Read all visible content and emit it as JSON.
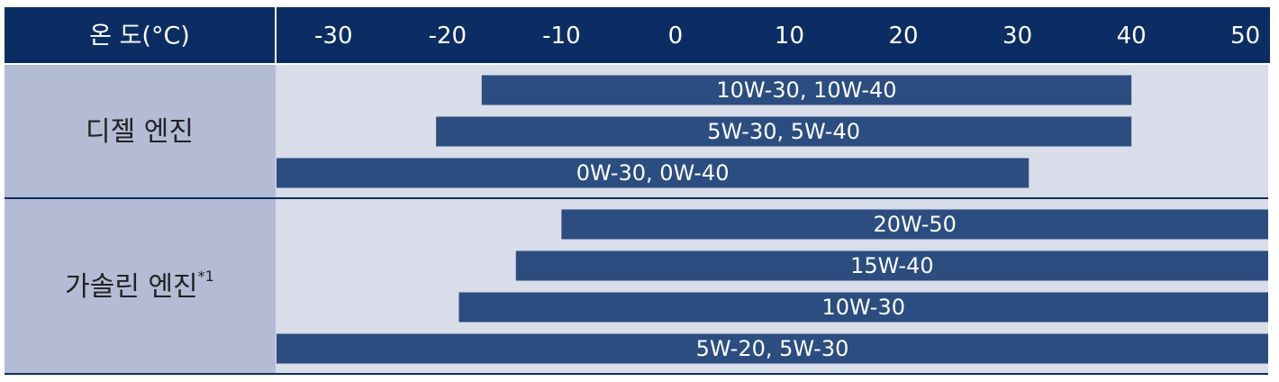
{
  "chart_data": {
    "type": "range",
    "axis_label": "온 도(°C)",
    "xlim": [
      -35,
      52
    ],
    "xticks": [
      -30,
      -20,
      -10,
      0,
      10,
      20,
      30,
      40,
      50
    ],
    "color": "#2b4d80",
    "groups": [
      {
        "name": "디젤 엔진",
        "bars": [
          {
            "label": "10W-30, 10W-40",
            "start": -17,
            "end": 40
          },
          {
            "label": "5W-30, 5W-40",
            "start": -21,
            "end": 40
          },
          {
            "label": "0W-30, 0W-40",
            "start": -35,
            "end": 31
          }
        ]
      },
      {
        "name": "가솔린 엔진",
        "note_mark": "*1",
        "bars": [
          {
            "label": "20W-50",
            "start": -10,
            "end": 52
          },
          {
            "label": "15W-40",
            "start": -14,
            "end": 52
          },
          {
            "label": "10W-30",
            "start": -19,
            "end": 52
          },
          {
            "label": "5W-20, 5W-30",
            "start": -35,
            "end": 52
          }
        ]
      }
    ]
  }
}
